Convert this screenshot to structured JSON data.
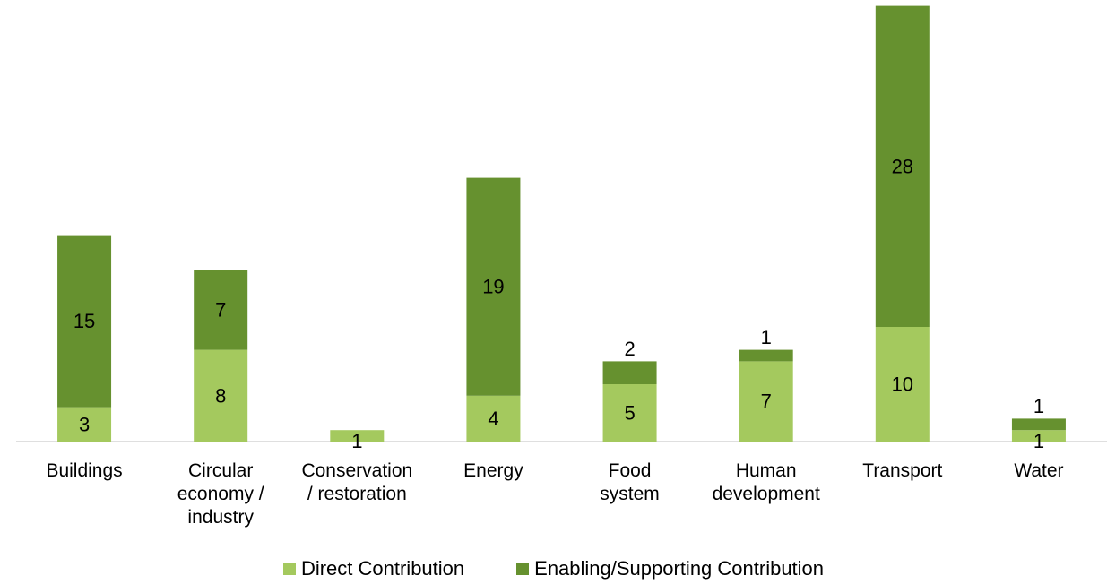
{
  "chart_data": {
    "type": "bar",
    "stacked": true,
    "title": "",
    "xlabel": "",
    "ylabel": "",
    "ylim": [
      0,
      38
    ],
    "grid": false,
    "legend_position": "bottom",
    "categories": [
      [
        "Buildings"
      ],
      [
        "Circular",
        "economy /",
        "industry"
      ],
      [
        "Conservation",
        "/ restoration"
      ],
      [
        "Energy"
      ],
      [
        "Food",
        "system"
      ],
      [
        "Human",
        "development"
      ],
      [
        "Transport"
      ],
      [
        "Water"
      ]
    ],
    "series": [
      {
        "name": "Direct Contribution",
        "color": "#a4c95e",
        "values": [
          3,
          8,
          1,
          4,
          5,
          7,
          10,
          1
        ]
      },
      {
        "name": "Enabling/Supporting Contribution",
        "color": "#66912f",
        "values": [
          15,
          7,
          null,
          19,
          2,
          1,
          28,
          1
        ]
      }
    ]
  }
}
